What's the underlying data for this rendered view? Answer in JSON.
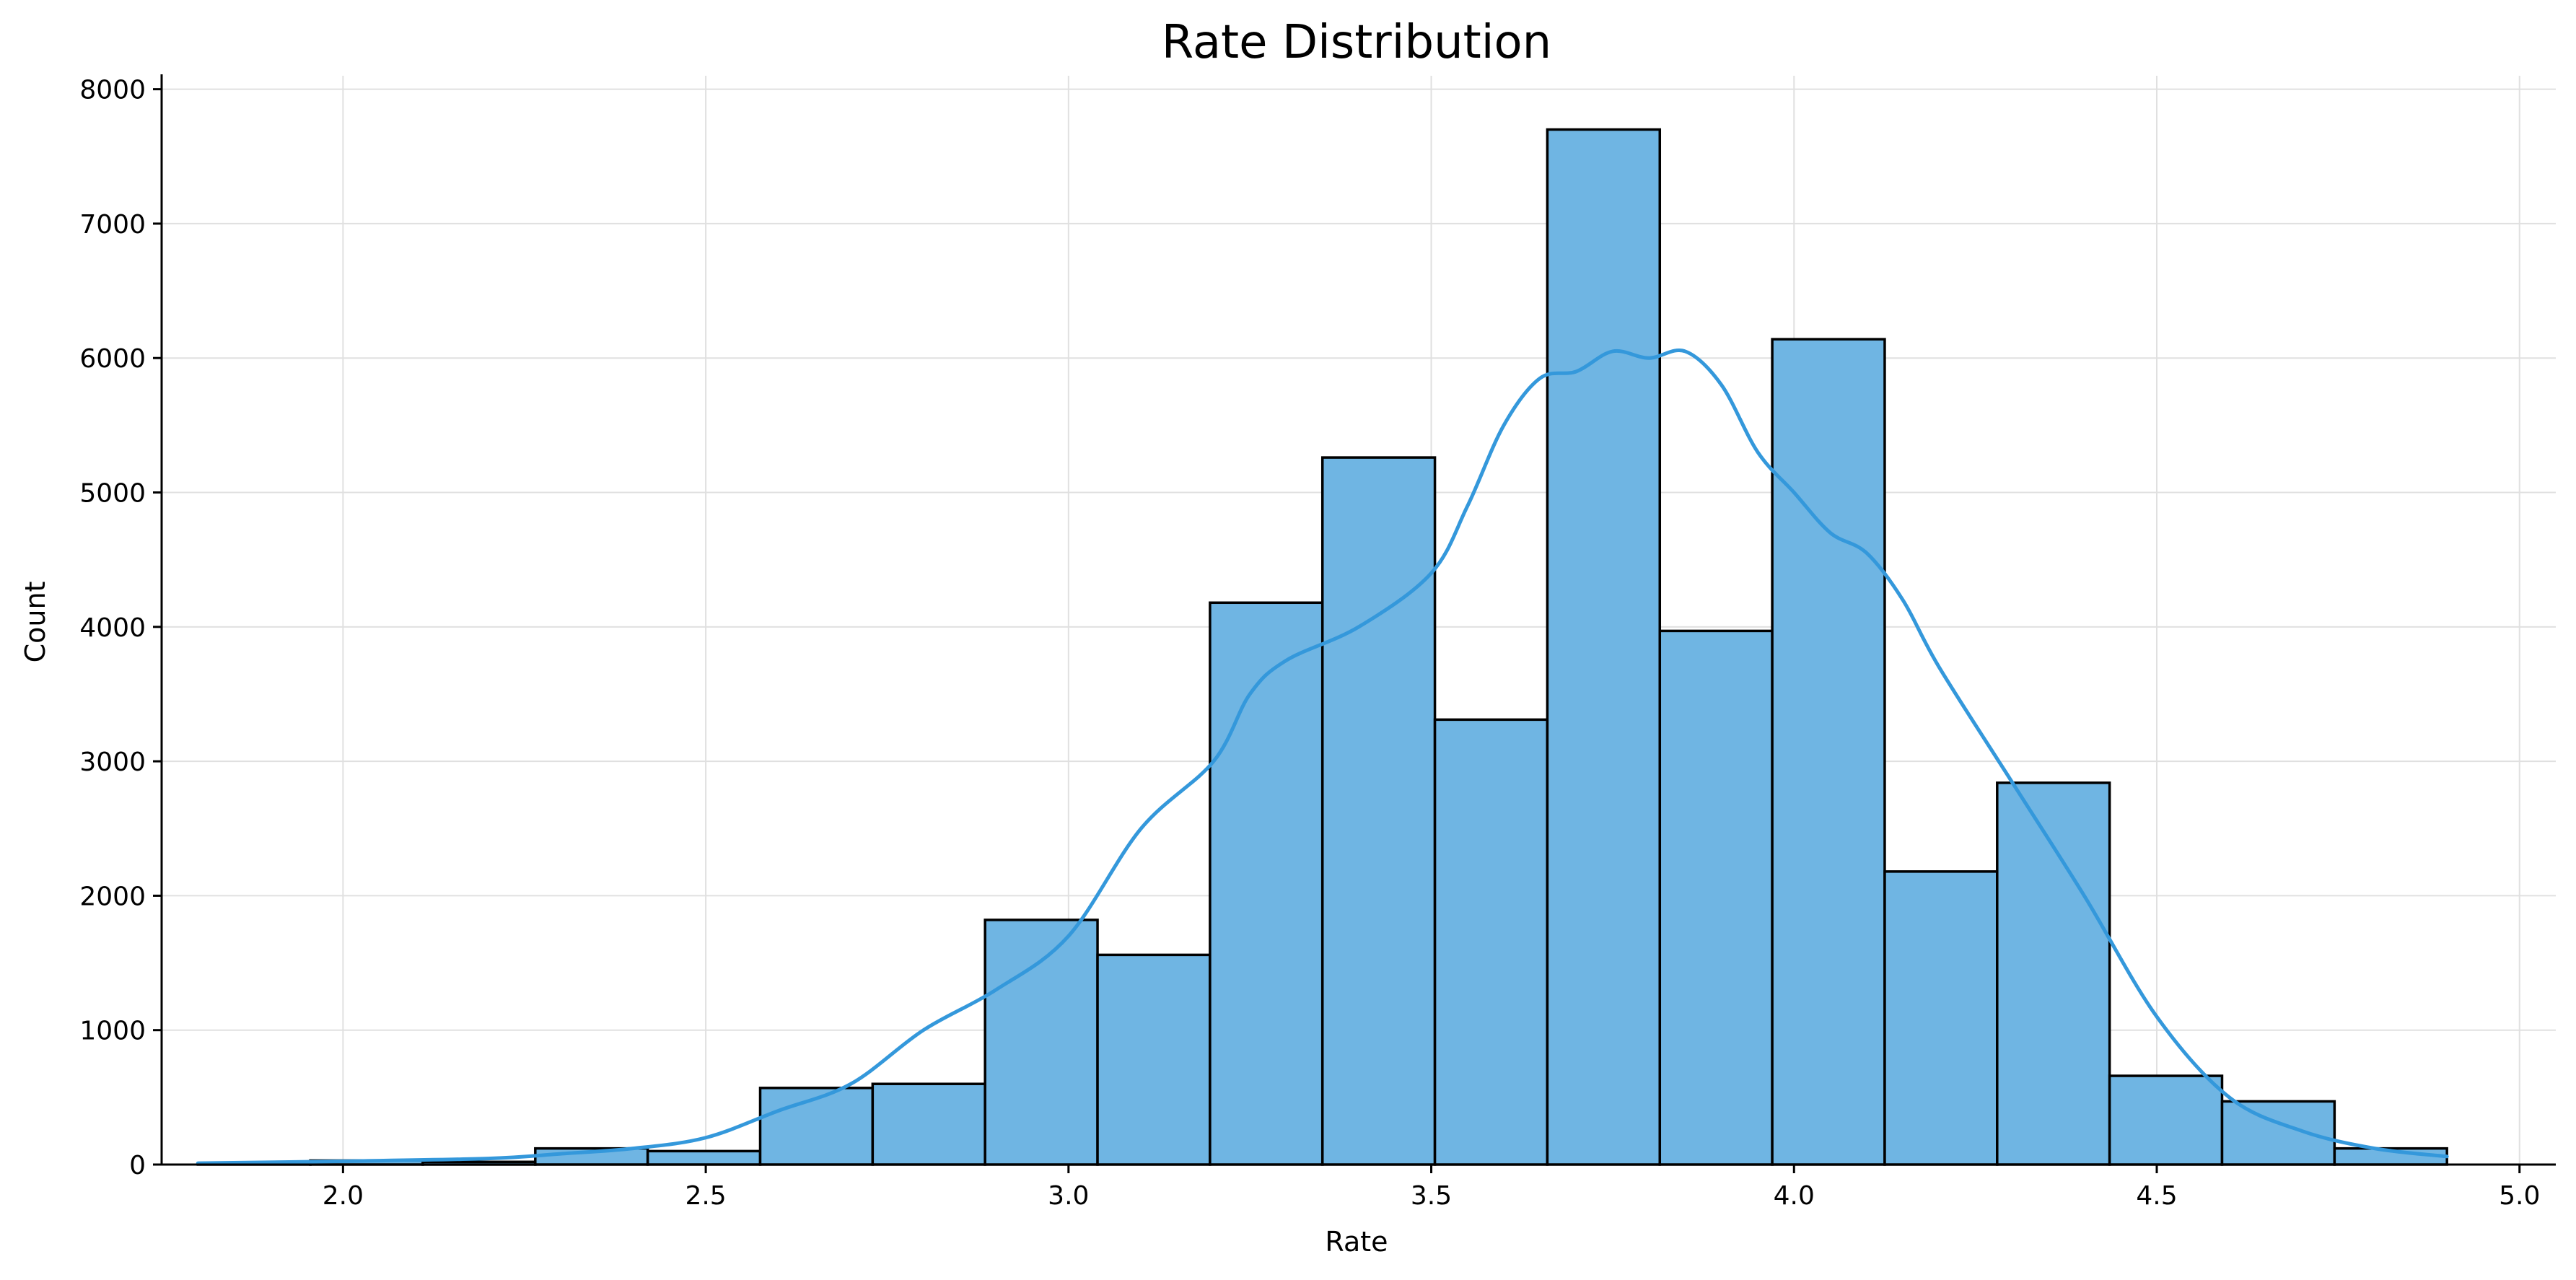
{
  "chart_data": {
    "type": "bar",
    "subtype": "histogram",
    "title": "Rate Distribution",
    "xlabel": "Rate",
    "ylabel": "Count",
    "xlim": [
      1.75,
      5.05
    ],
    "ylim": [
      0,
      8100
    ],
    "grid": true,
    "bin_edges": [
      1.8,
      1.955,
      2.11,
      2.265,
      2.42,
      2.575,
      2.73,
      2.885,
      3.04,
      3.195,
      3.35,
      3.505,
      3.66,
      3.815,
      3.97,
      4.125,
      4.28,
      4.435,
      4.59,
      4.745,
      4.9
    ],
    "values": [
      5,
      30,
      20,
      120,
      100,
      570,
      600,
      1820,
      1560,
      4180,
      5260,
      3310,
      7700,
      3970,
      6140,
      2180,
      2840,
      660,
      470,
      120
    ],
    "x_ticks": [
      "2.0",
      "2.5",
      "3.0",
      "3.5",
      "4.0",
      "4.5",
      "5.0"
    ],
    "x_tick_values": [
      2.0,
      2.5,
      3.0,
      3.5,
      4.0,
      4.5,
      5.0
    ],
    "y_ticks": [
      "0",
      "1000",
      "2000",
      "3000",
      "4000",
      "5000",
      "6000",
      "7000",
      "8000"
    ],
    "y_tick_values": [
      0,
      1000,
      2000,
      3000,
      4000,
      5000,
      6000,
      7000,
      8000
    ],
    "kde": {
      "x": [
        1.8,
        2.0,
        2.2,
        2.3,
        2.4,
        2.5,
        2.6,
        2.7,
        2.8,
        2.9,
        3.0,
        3.1,
        3.2,
        3.25,
        3.3,
        3.4,
        3.5,
        3.55,
        3.6,
        3.65,
        3.7,
        3.75,
        3.8,
        3.85,
        3.9,
        3.95,
        4.0,
        4.05,
        4.1,
        4.15,
        4.2,
        4.3,
        4.4,
        4.5,
        4.6,
        4.7,
        4.8,
        4.9
      ],
      "y": [
        10,
        25,
        45,
        80,
        120,
        200,
        400,
        600,
        1000,
        1300,
        1700,
        2500,
        3000,
        3500,
        3750,
        4000,
        4400,
        4900,
        5500,
        5850,
        5900,
        6050,
        6000,
        6050,
        5800,
        5300,
        5000,
        4700,
        4550,
        4200,
        3700,
        2850,
        2000,
        1100,
        500,
        250,
        120,
        60
      ]
    },
    "colors": {
      "bar_fill": "#6fb5e3",
      "bar_edge": "#000000",
      "kde_line": "#3498db",
      "grid": "#e0e0e0"
    }
  }
}
